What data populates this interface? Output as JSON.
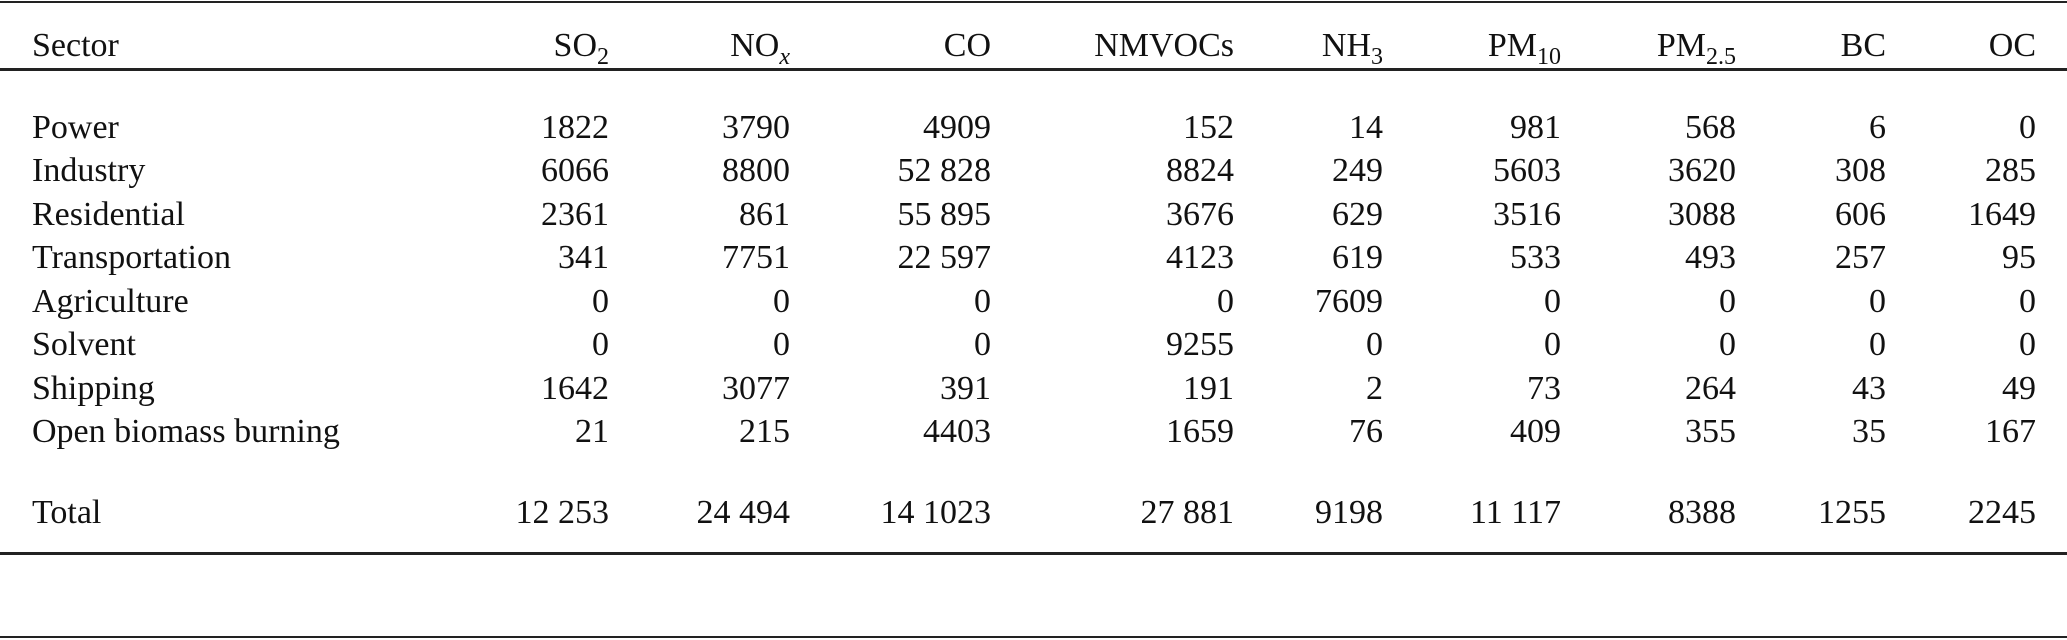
{
  "table": {
    "columns": [
      {
        "base": "Sector",
        "sub": ""
      },
      {
        "base": "SO",
        "sub": "2"
      },
      {
        "base": "NO",
        "sub": "x"
      },
      {
        "base": "CO",
        "sub": ""
      },
      {
        "base": "NMVOCs",
        "sub": ""
      },
      {
        "base": "NH",
        "sub": "3"
      },
      {
        "base": "PM",
        "sub": "10"
      },
      {
        "base": "PM",
        "sub": "2.5"
      },
      {
        "base": "BC",
        "sub": ""
      },
      {
        "base": "OC",
        "sub": ""
      }
    ],
    "rows": [
      [
        "Power",
        "1822",
        "3790",
        "4909",
        "152",
        "14",
        "981",
        "568",
        "6",
        "0"
      ],
      [
        "Industry",
        "6066",
        "8800",
        "52 828",
        "8824",
        "249",
        "5603",
        "3620",
        "308",
        "285"
      ],
      [
        "Residential",
        "2361",
        "861",
        "55 895",
        "3676",
        "629",
        "3516",
        "3088",
        "606",
        "1649"
      ],
      [
        "Transportation",
        "341",
        "7751",
        "22 597",
        "4123",
        "619",
        "533",
        "493",
        "257",
        "95"
      ],
      [
        "Agriculture",
        "0",
        "0",
        "0",
        "0",
        "7609",
        "0",
        "0",
        "0",
        "0"
      ],
      [
        "Solvent",
        "0",
        "0",
        "0",
        "9255",
        "0",
        "0",
        "0",
        "0",
        "0"
      ],
      [
        "Shipping",
        "1642",
        "3077",
        "391",
        "191",
        "2",
        "73",
        "264",
        "43",
        "49"
      ],
      [
        "Open biomass burning",
        "21",
        "215",
        "4403",
        "1659",
        "76",
        "409",
        "355",
        "35",
        "167"
      ]
    ],
    "total": [
      "Total",
      "12 253",
      "24 494",
      "14 1023",
      "27 881",
      "9198",
      "11 117",
      "8388",
      "1255",
      "2245"
    ]
  }
}
